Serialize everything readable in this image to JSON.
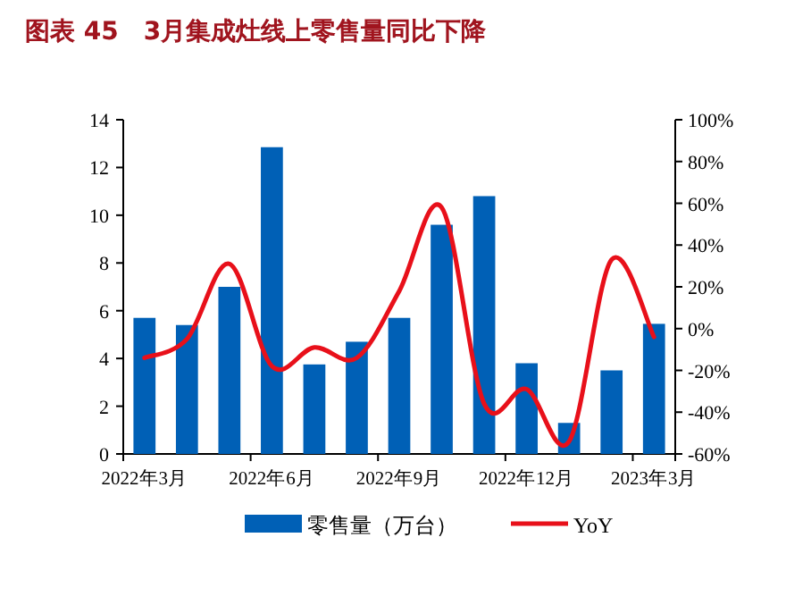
{
  "chart_data": {
    "type": "bar",
    "title": "图表 45　3月集成灶线上零售量同比下降",
    "categories": [
      "2022年3月",
      null,
      null,
      "2022年6月",
      null,
      null,
      "2022年9月",
      null,
      null,
      "2022年12月",
      null,
      null,
      "2023年3月"
    ],
    "series": [
      {
        "name": "零售量（万台）",
        "color": "#0060b6",
        "values": [
          5.7,
          5.4,
          7.0,
          12.85,
          3.75,
          4.7,
          5.7,
          9.6,
          10.8,
          3.8,
          1.3,
          3.5,
          5.45
        ]
      },
      {
        "name": "YoY",
        "type": "line",
        "axis": "y2",
        "color": "#e8101a",
        "values": [
          -14,
          -5,
          31,
          -18,
          -9,
          -14,
          18,
          58,
          -36,
          -29,
          -54,
          33,
          -4
        ]
      }
    ],
    "ylim": [
      0,
      14
    ],
    "yticks": [
      0,
      2,
      4,
      6,
      8,
      10,
      12,
      14
    ],
    "y2lim": [
      -60,
      100
    ],
    "y2ticks": [
      {
        "value": -60,
        "label": "-60%"
      },
      {
        "value": -40,
        "label": "-40%"
      },
      {
        "value": -20,
        "label": "-20%"
      },
      {
        "value": 0,
        "label": "0%"
      },
      {
        "value": 20,
        "label": "20%"
      },
      {
        "value": 40,
        "label": "40%"
      },
      {
        "value": 60,
        "label": "60%"
      },
      {
        "value": 80,
        "label": "80%"
      },
      {
        "value": 100,
        "label": "100%"
      }
    ],
    "legend": "bottom",
    "grid": false
  }
}
